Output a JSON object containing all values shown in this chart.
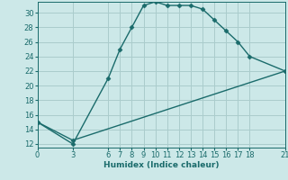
{
  "title": "",
  "xlabel": "Humidex (Indice chaleur)",
  "bg_color": "#cce8e8",
  "grid_color": "#aacccc",
  "line_color": "#1a6b6b",
  "line1_x": [
    0,
    3,
    6,
    7,
    8,
    9,
    10,
    11,
    12,
    13,
    14,
    15,
    16,
    17,
    18,
    21
  ],
  "line1_y": [
    15,
    12,
    21,
    25,
    28,
    31,
    31.5,
    31,
    31,
    31,
    30.5,
    29,
    27.5,
    26,
    24,
    22
  ],
  "line2_x": [
    0,
    3,
    21
  ],
  "line2_y": [
    15,
    12.5,
    22
  ],
  "xlim": [
    0,
    21
  ],
  "ylim": [
    11.5,
    31.5
  ],
  "yticks": [
    12,
    14,
    16,
    18,
    20,
    22,
    24,
    26,
    28,
    30
  ],
  "xticks": [
    0,
    3,
    6,
    7,
    8,
    9,
    10,
    11,
    12,
    13,
    14,
    15,
    16,
    17,
    18,
    21
  ],
  "marker": "D",
  "markersize": 2.5,
  "linewidth": 1.0,
  "axis_fontsize": 6.5,
  "tick_fontsize": 6
}
